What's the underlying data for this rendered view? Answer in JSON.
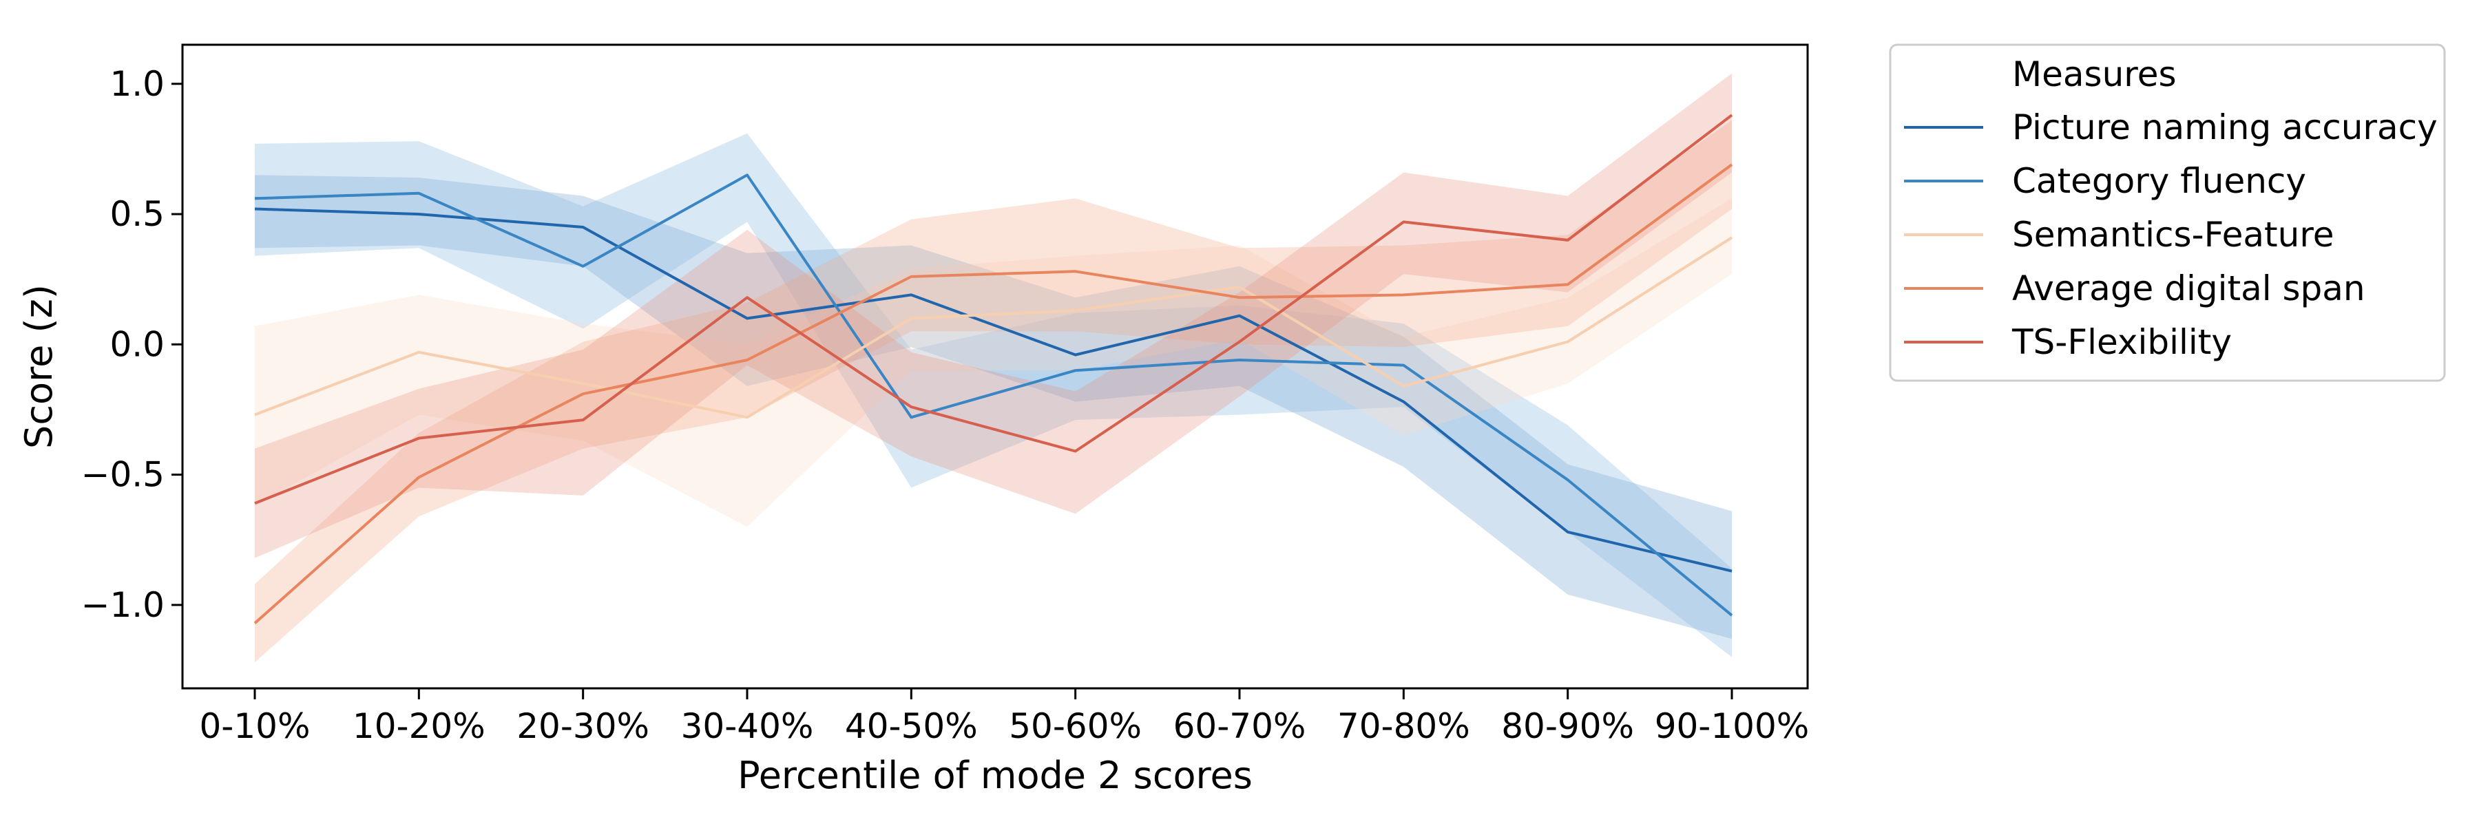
{
  "chart_data": {
    "type": "line",
    "title": "",
    "xlabel": "Percentile of mode 2 scores",
    "ylabel": "Score (z)",
    "categories": [
      "0-10%",
      "10-20%",
      "20-30%",
      "30-40%",
      "40-50%",
      "50-60%",
      "60-70%",
      "70-80%",
      "80-90%",
      "90-100%"
    ],
    "ylim": [
      -1.32,
      1.15
    ],
    "yticks": [
      1.0,
      0.5,
      0.0,
      -0.5,
      -1.0
    ],
    "ytick_labels": [
      "1.0",
      "0.5",
      "0.0",
      "−0.5",
      "−1.0"
    ],
    "grid": false,
    "legend": {
      "title": "Measures",
      "placement": "outside-top-right"
    },
    "series": [
      {
        "name": "Picture naming accuracy",
        "color": "#2166ac",
        "band_color": "#6a9fd0",
        "values": [
          0.52,
          0.5,
          0.45,
          0.1,
          0.19,
          -0.04,
          0.11,
          -0.22,
          -0.72,
          -0.87
        ],
        "lower": [
          0.37,
          0.38,
          0.3,
          -0.16,
          -0.01,
          -0.22,
          -0.16,
          -0.47,
          -0.96,
          -1.13
        ],
        "upper": [
          0.65,
          0.64,
          0.57,
          0.35,
          0.38,
          0.18,
          0.3,
          0.03,
          -0.46,
          -0.64
        ]
      },
      {
        "name": "Category fluency",
        "color": "#3a86c4",
        "band_color": "#80b4de",
        "values": [
          0.56,
          0.58,
          0.3,
          0.65,
          -0.28,
          -0.1,
          -0.06,
          -0.08,
          -0.52,
          -1.04
        ],
        "lower": [
          0.34,
          0.37,
          0.06,
          0.47,
          -0.55,
          -0.29,
          -0.27,
          -0.24,
          -0.72,
          -1.2
        ],
        "upper": [
          0.77,
          0.78,
          0.53,
          0.81,
          -0.02,
          0.12,
          0.15,
          0.08,
          -0.31,
          -0.86
        ]
      },
      {
        "name": "Semantics-Feature",
        "color": "#f6cfb0",
        "band_color": "#fbdcc8",
        "values": [
          -0.27,
          -0.03,
          -0.15,
          -0.28,
          0.1,
          0.13,
          0.22,
          -0.16,
          0.01,
          0.41
        ],
        "lower": [
          -0.62,
          -0.27,
          -0.37,
          -0.7,
          -0.1,
          -0.1,
          0.02,
          -0.35,
          -0.15,
          0.27
        ],
        "upper": [
          0.07,
          0.19,
          0.08,
          0.0,
          0.29,
          0.34,
          0.38,
          0.03,
          0.18,
          0.56
        ]
      },
      {
        "name": "Average digital span",
        "color": "#e8855f",
        "band_color": "#f2a889",
        "values": [
          -1.07,
          -0.51,
          -0.19,
          -0.06,
          0.26,
          0.28,
          0.18,
          0.19,
          0.23,
          0.69
        ],
        "lower": [
          -1.22,
          -0.66,
          -0.4,
          -0.28,
          0.05,
          0.05,
          0.0,
          -0.01,
          0.07,
          0.52
        ],
        "upper": [
          -0.92,
          -0.34,
          0.01,
          0.16,
          0.48,
          0.56,
          0.37,
          0.38,
          0.42,
          0.86
        ]
      },
      {
        "name": "TS-Flexibility",
        "color": "#d6604d",
        "band_color": "#e8917e",
        "values": [
          -0.61,
          -0.36,
          -0.29,
          0.18,
          -0.24,
          -0.41,
          0.01,
          0.47,
          0.4,
          0.88
        ],
        "lower": [
          -0.82,
          -0.55,
          -0.58,
          -0.08,
          -0.43,
          -0.65,
          -0.2,
          0.27,
          0.2,
          0.66
        ],
        "upper": [
          -0.4,
          -0.17,
          -0.02,
          0.44,
          -0.03,
          -0.18,
          0.2,
          0.66,
          0.57,
          1.04
        ]
      }
    ]
  }
}
